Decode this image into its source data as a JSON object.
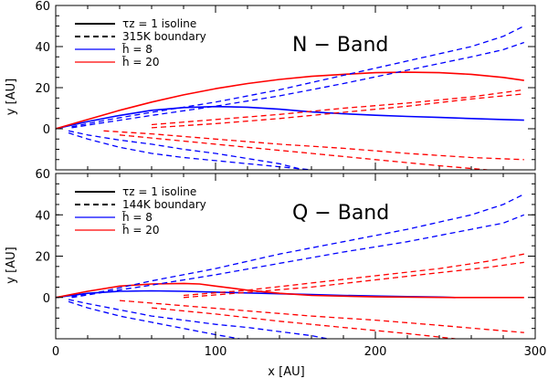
{
  "chart_data": [
    {
      "type": "line",
      "panel_label": "N − Band",
      "xlim": [
        0,
        300
      ],
      "ylim": [
        -20,
        60
      ],
      "xticks": [
        0,
        100,
        200,
        300
      ],
      "yticks": [
        0,
        20,
        40,
        60
      ],
      "ylabel": "y  [AU]",
      "legend": [
        {
          "label": "τz = 1 isoline",
          "color": "#000000",
          "dash": false
        },
        {
          "label": "315K boundary",
          "color": "#000000",
          "dash": true
        },
        {
          "label": "h̃ = 8",
          "color": "#0000ff",
          "dash": false
        },
        {
          "label": "h̃ = 20",
          "color": "#ff0000",
          "dash": false
        }
      ],
      "series": [
        {
          "color": "#0000ff",
          "dash": false,
          "x": [
            0,
            20,
            40,
            60,
            80,
            100,
            120,
            140,
            160,
            180,
            200,
            220,
            240,
            260,
            280,
            293
          ],
          "y": [
            0,
            3.5,
            6.5,
            9,
            10.3,
            10.8,
            10.5,
            9.5,
            8.2,
            7.3,
            6.6,
            6.0,
            5.5,
            5.0,
            4.5,
            4.2
          ]
        },
        {
          "color": "#ff0000",
          "dash": false,
          "x": [
            0,
            20,
            40,
            60,
            80,
            100,
            120,
            140,
            160,
            180,
            200,
            220,
            240,
            260,
            280,
            293
          ],
          "y": [
            0,
            4.5,
            9,
            13,
            16.5,
            19.5,
            22,
            24,
            25.5,
            26.5,
            27.3,
            27.5,
            27.3,
            26.5,
            25,
            23.5
          ]
        },
        {
          "color": "#0000ff",
          "dash": true,
          "x": [
            10,
            30,
            60,
            100,
            140,
            180,
            220,
            260,
            280,
            293
          ],
          "y": [
            1,
            4,
            8,
            13,
            19,
            26,
            33,
            40,
            45,
            50
          ]
        },
        {
          "color": "#0000ff",
          "dash": true,
          "x": [
            10,
            30,
            60,
            100,
            140,
            180,
            220,
            260,
            280,
            293
          ],
          "y": [
            0.5,
            3,
            6.5,
            11,
            16,
            22,
            28.5,
            35,
            38.5,
            42
          ]
        },
        {
          "color": "#0000ff",
          "dash": true,
          "x": [
            8,
            20,
            40,
            60,
            80,
            100,
            120,
            140,
            155
          ],
          "y": [
            -1,
            -3,
            -5.5,
            -7.5,
            -10,
            -12,
            -14.5,
            -17,
            -20
          ]
        },
        {
          "color": "#0000ff",
          "dash": true,
          "x": [
            8,
            20,
            40,
            60,
            80,
            100,
            120,
            140,
            160
          ],
          "y": [
            -2,
            -5,
            -9,
            -12,
            -14,
            -15.5,
            -17,
            -18.5,
            -20
          ]
        },
        {
          "color": "#ff0000",
          "dash": true,
          "x": [
            60,
            100,
            140,
            180,
            220,
            260,
            293
          ],
          "y": [
            2,
            4.5,
            7,
            10,
            12.5,
            15.5,
            19
          ]
        },
        {
          "color": "#ff0000",
          "dash": true,
          "x": [
            60,
            100,
            140,
            180,
            220,
            260,
            293
          ],
          "y": [
            0.5,
            2.5,
            5,
            8,
            11,
            14.5,
            17
          ]
        },
        {
          "color": "#ff0000",
          "dash": true,
          "x": [
            30,
            60,
            100,
            140,
            180,
            220,
            260,
            293
          ],
          "y": [
            -1,
            -2.5,
            -5,
            -7.5,
            -9.5,
            -12,
            -14,
            -15
          ]
        },
        {
          "color": "#ff0000",
          "dash": true,
          "x": [
            40,
            80,
            120,
            160,
            200,
            240,
            270
          ],
          "y": [
            -3,
            -6,
            -9,
            -12,
            -15,
            -18,
            -20
          ]
        }
      ]
    },
    {
      "type": "line",
      "panel_label": "Q − Band",
      "xlim": [
        0,
        300
      ],
      "ylim": [
        -20,
        60
      ],
      "xticks": [
        0,
        100,
        200,
        300
      ],
      "yticks": [
        0,
        20,
        40,
        60
      ],
      "xlabel": "x  [AU]",
      "ylabel": "y  [AU]",
      "legend": [
        {
          "label": "τz = 1 isoline",
          "color": "#000000",
          "dash": false
        },
        {
          "label": "144K boundary",
          "color": "#000000",
          "dash": true
        },
        {
          "label": "h̃ = 8",
          "color": "#0000ff",
          "dash": false
        },
        {
          "label": "h̃ = 20",
          "color": "#ff0000",
          "dash": false
        }
      ],
      "series": [
        {
          "color": "#0000ff",
          "dash": false,
          "x": [
            0,
            20,
            40,
            60,
            80,
            100,
            120,
            140,
            160,
            180,
            200,
            220,
            240,
            250
          ],
          "y": [
            0,
            2,
            3,
            3.2,
            3.0,
            2.6,
            2.2,
            1.8,
            1.4,
            1.0,
            0.7,
            0.4,
            0.2,
            0
          ]
        },
        {
          "color": "#ff0000",
          "dash": false,
          "x": [
            0,
            20,
            40,
            60,
            80,
            90,
            100,
            120,
            140,
            160,
            200,
            250,
            293
          ],
          "y": [
            0,
            3,
            5.5,
            6.5,
            6.8,
            6.5,
            5.5,
            3.5,
            2,
            1,
            0.3,
            0,
            0
          ]
        },
        {
          "color": "#0000ff",
          "dash": true,
          "x": [
            10,
            30,
            60,
            100,
            140,
            180,
            220,
            260,
            280,
            293
          ],
          "y": [
            0.5,
            3,
            8,
            14,
            21,
            27,
            33,
            40,
            45,
            50
          ]
        },
        {
          "color": "#0000ff",
          "dash": true,
          "x": [
            10,
            30,
            60,
            100,
            140,
            180,
            220,
            260,
            280,
            293
          ],
          "y": [
            0,
            2.5,
            6,
            11,
            16.5,
            22,
            27,
            33,
            36,
            40
          ]
        },
        {
          "color": "#0000ff",
          "dash": true,
          "x": [
            8,
            20,
            40,
            60,
            80,
            100,
            120,
            140,
            160,
            170
          ],
          "y": [
            -1,
            -3,
            -6,
            -9,
            -11,
            -13,
            -14.5,
            -16.5,
            -18.5,
            -20
          ]
        },
        {
          "color": "#0000ff",
          "dash": true,
          "x": [
            8,
            20,
            40,
            60,
            80,
            100,
            115
          ],
          "y": [
            -2,
            -5,
            -9,
            -12,
            -15,
            -18,
            -20
          ]
        },
        {
          "color": "#ff0000",
          "dash": true,
          "x": [
            80,
            120,
            160,
            200,
            240,
            270,
            293
          ],
          "y": [
            1,
            3.5,
            7,
            10.5,
            14,
            17.5,
            21
          ]
        },
        {
          "color": "#ff0000",
          "dash": true,
          "x": [
            80,
            120,
            160,
            200,
            240,
            270,
            293
          ],
          "y": [
            0,
            2.5,
            5,
            8.5,
            12,
            14.5,
            17
          ]
        },
        {
          "color": "#ff0000",
          "dash": true,
          "x": [
            40,
            80,
            120,
            160,
            200,
            240,
            270,
            293
          ],
          "y": [
            -1.5,
            -4,
            -6.5,
            -9,
            -11,
            -13.5,
            -15.5,
            -17
          ]
        },
        {
          "color": "#ff0000",
          "dash": true,
          "x": [
            60,
            100,
            140,
            180,
            220,
            250
          ],
          "y": [
            -5,
            -8,
            -11.5,
            -14.5,
            -17.5,
            -20
          ]
        }
      ]
    }
  ]
}
